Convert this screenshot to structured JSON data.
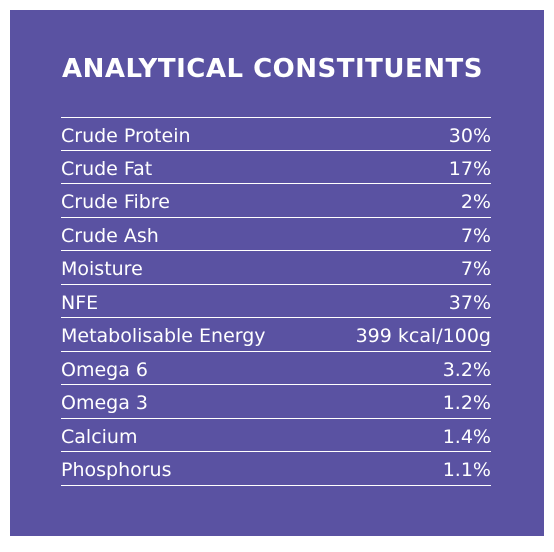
{
  "title": "ANALYTICAL CONSTITUENTS",
  "rows": [
    {
      "name": "Crude Protein",
      "value": "30%"
    },
    {
      "name": "Crude Fat",
      "value": "17%"
    },
    {
      "name": "Crude Fibre",
      "value": "2%"
    },
    {
      "name": "Crude Ash",
      "value": "7%"
    },
    {
      "name": "Moisture",
      "value": "7%"
    },
    {
      "name": "NFE",
      "value": "37%"
    },
    {
      "name": "Metabolisable Energy",
      "value": "399 kcal/100g"
    },
    {
      "name": "Omega 6",
      "value": "3.2%"
    },
    {
      "name": "Omega 3",
      "value": "1.2%"
    },
    {
      "name": "Calcium",
      "value": "1.4%"
    },
    {
      "name": "Phosphorus",
      "value": "1.1%"
    }
  ],
  "colors": {
    "panel_background": "#5a52a2",
    "text": "#ffffff",
    "lines": "#ffffff"
  }
}
